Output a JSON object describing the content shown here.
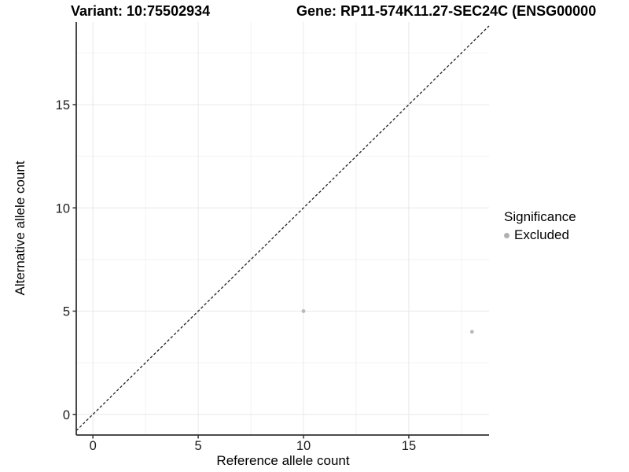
{
  "chart_data": {
    "type": "scatter",
    "title_left": "Variant: 10:75502934",
    "title_right": "Gene: RP11-574K11.27-SEC24C (ENSG00000",
    "xlabel": "Reference allele count",
    "ylabel": "Alternative allele count",
    "xlim": [
      -0.79,
      18.81
    ],
    "ylim": [
      -1.0,
      19.0
    ],
    "x_major_ticks": [
      0,
      5,
      10,
      15
    ],
    "y_major_ticks": [
      0,
      5,
      10,
      15
    ],
    "x_minor_ticks": [
      2.5,
      7.5,
      12.5,
      17.5
    ],
    "y_minor_ticks": [
      2.5,
      7.5,
      12.5,
      17.5
    ],
    "grid": true,
    "series": [
      {
        "name": "Excluded",
        "color": "#b9b9b9",
        "points": [
          {
            "x": 10,
            "y": 5
          },
          {
            "x": 18,
            "y": 4
          }
        ]
      }
    ],
    "identity_line": {
      "type": "y=x",
      "style": "dashed",
      "color": "#222222"
    },
    "legend": {
      "title": "Significance",
      "position": "right",
      "items": [
        {
          "label": "Excluded",
          "color": "#b0b0b0"
        }
      ]
    },
    "colors": {
      "major_grid": "#e8e8e8",
      "minor_grid": "#f2f2f2",
      "axis_line": "#333333",
      "tick_label": "#1a1a1a"
    }
  }
}
